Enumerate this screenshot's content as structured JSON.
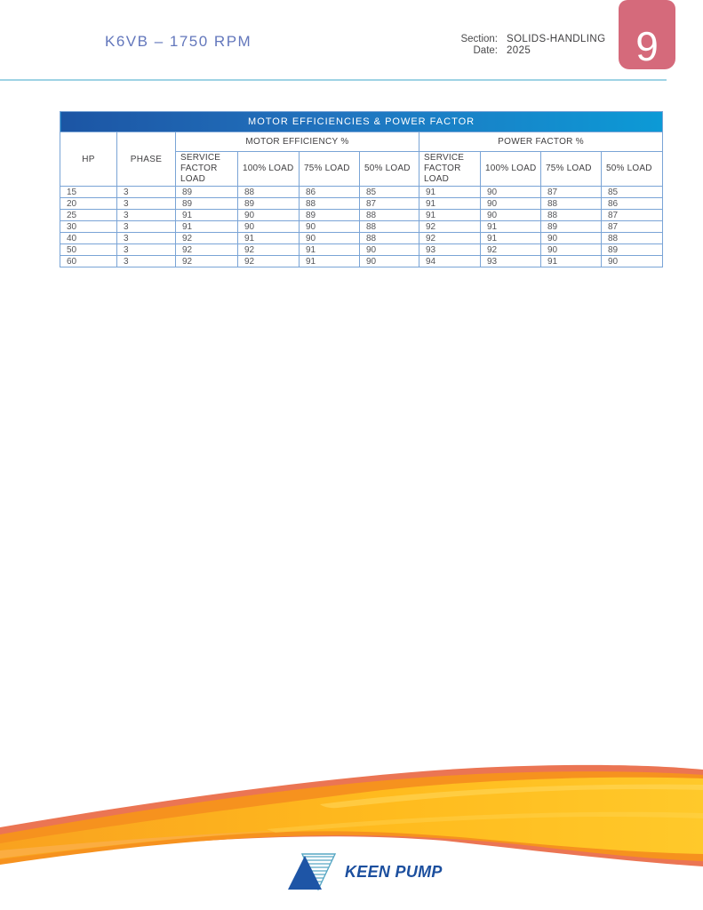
{
  "header": {
    "title": "K6VB – 1750 RPM",
    "section_label": "Section:",
    "section_value": "SOLIDS-HANDLING",
    "date_label": "Date:",
    "date_value": "2025",
    "page_number": "9"
  },
  "table": {
    "title": "MOTOR EFFICIENCIES & POWER FACTOR",
    "hp_header": "HP",
    "phase_header": "PHASE",
    "group_headers": [
      "MOTOR EFFICIENCY %",
      "POWER FACTOR %"
    ],
    "sub_headers": [
      "SERVICE FACTOR LOAD",
      "100% LOAD",
      "75% LOAD",
      "50% LOAD",
      "SERVICE FACTOR LOAD",
      "100% LOAD",
      "75% LOAD",
      "50% LOAD"
    ],
    "rows": [
      [
        "15",
        "3",
        "89",
        "88",
        "86",
        "85",
        "91",
        "90",
        "87",
        "85"
      ],
      [
        "20",
        "3",
        "89",
        "89",
        "88",
        "87",
        "91",
        "90",
        "88",
        "86"
      ],
      [
        "25",
        "3",
        "91",
        "90",
        "89",
        "88",
        "91",
        "90",
        "88",
        "87"
      ],
      [
        "30",
        "3",
        "91",
        "90",
        "90",
        "88",
        "92",
        "91",
        "89",
        "87"
      ],
      [
        "40",
        "3",
        "92",
        "91",
        "90",
        "88",
        "92",
        "91",
        "90",
        "88"
      ],
      [
        "50",
        "3",
        "92",
        "92",
        "91",
        "90",
        "93",
        "92",
        "90",
        "89"
      ],
      [
        "60",
        "3",
        "92",
        "92",
        "91",
        "90",
        "94",
        "93",
        "91",
        "90"
      ]
    ]
  },
  "footer": {
    "brand": "KEEN PUMP"
  },
  "colors": {
    "title_bar_gradient_left": "#1C55A4",
    "title_bar_gradient_right": "#0C9AD6",
    "table_border": "#7AA4D6",
    "page_tab_pink": "#D56A7B",
    "header_rule_teal": "#9ED3E4",
    "title_text_blue": "#6377BC",
    "brand_blue": "#1C4F9E",
    "brand_hatch_teal": "#57A7C4",
    "wave_salmon": "#EB7553",
    "wave_orange": "#F6921E",
    "wave_light_orange": "#FBAD41",
    "wave_yellow": "#FFC61C",
    "wave_highlight": "#FFD95E"
  }
}
